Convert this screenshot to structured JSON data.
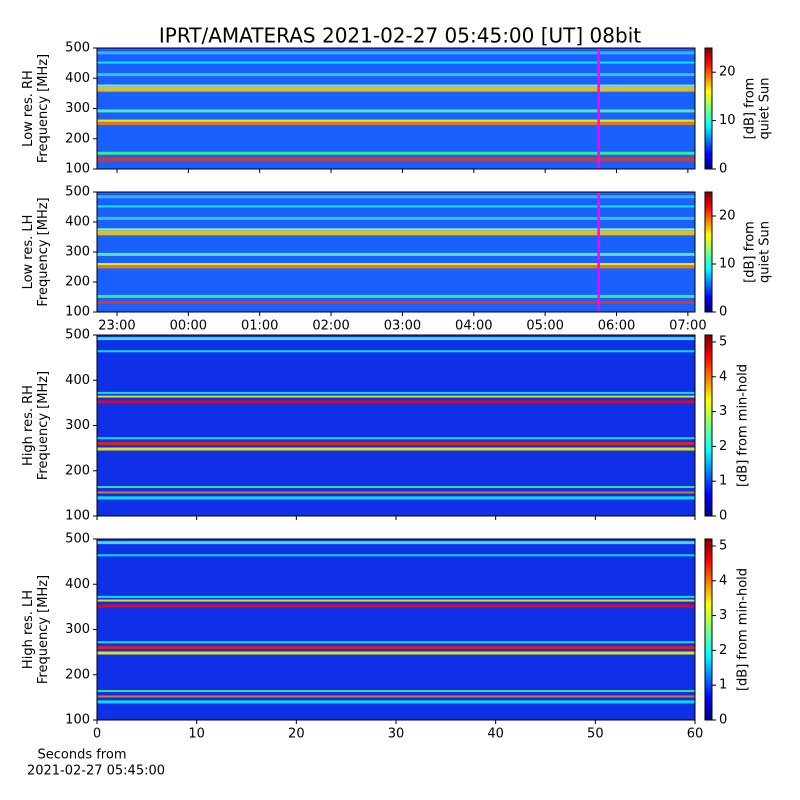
{
  "title": "IPRT/AMATERAS 2021-02-27 05:45:00 [UT]   08bit",
  "chart_data": [
    {
      "type": "heatmap",
      "ylabel": [
        "Low res. RH",
        "Frequency [MHz]"
      ],
      "xlim": [
        22.72,
        31.1
      ],
      "xticks": [
        {
          "value": 23,
          "label": "23:00"
        },
        {
          "value": 24,
          "label": "00:00"
        },
        {
          "value": 25,
          "label": "01:00"
        },
        {
          "value": 26,
          "label": "02:00"
        },
        {
          "value": 27,
          "label": "03:00"
        },
        {
          "value": 28,
          "label": "04:00"
        },
        {
          "value": 29,
          "label": "05:00"
        },
        {
          "value": 30,
          "label": "06:00"
        },
        {
          "value": 31,
          "label": "07:00"
        }
      ],
      "show_xticklabels": false,
      "ylim": [
        100,
        500
      ],
      "yticks": [
        100,
        200,
        300,
        400,
        500
      ],
      "marker": {
        "value": 29.75,
        "color": "#ff00ff"
      },
      "colorbar": {
        "label": [
          "[dB] from",
          "quiet Sun"
        ],
        "lim": [
          0,
          25
        ],
        "ticks": [
          0,
          10,
          20
        ]
      }
    },
    {
      "type": "heatmap",
      "ylabel": [
        "Low res. LH",
        "Frequency [MHz]"
      ],
      "xlim": [
        22.72,
        31.1
      ],
      "xticks": [
        {
          "value": 23,
          "label": "23:00"
        },
        {
          "value": 24,
          "label": "00:00"
        },
        {
          "value": 25,
          "label": "01:00"
        },
        {
          "value": 26,
          "label": "02:00"
        },
        {
          "value": 27,
          "label": "03:00"
        },
        {
          "value": 28,
          "label": "04:00"
        },
        {
          "value": 29,
          "label": "05:00"
        },
        {
          "value": 30,
          "label": "06:00"
        },
        {
          "value": 31,
          "label": "07:00"
        }
      ],
      "show_xticklabels": true,
      "ylim": [
        100,
        500
      ],
      "yticks": [
        100,
        200,
        300,
        400,
        500
      ],
      "marker": {
        "value": 29.75,
        "color": "#ff00ff"
      },
      "colorbar": {
        "label": [
          "[dB] from",
          "quiet Sun"
        ],
        "lim": [
          0,
          25
        ],
        "ticks": [
          0,
          10,
          20
        ]
      }
    },
    {
      "type": "heatmap",
      "ylabel": [
        "High res. RH",
        "Frequency [MHz]"
      ],
      "xlim": [
        0,
        60
      ],
      "xticks": [
        0,
        10,
        20,
        30,
        40,
        50,
        60
      ],
      "show_xticklabels": false,
      "ylim": [
        100,
        500
      ],
      "yticks": [
        100,
        200,
        300,
        400,
        500
      ],
      "colorbar": {
        "label": [
          "[dB] from min-hold"
        ],
        "lim": [
          0,
          5.2
        ],
        "ticks": [
          0,
          1,
          2,
          3,
          4,
          5
        ]
      }
    },
    {
      "type": "heatmap",
      "ylabel": [
        "High res. LH",
        "Frequency [MHz]"
      ],
      "xlim": [
        0,
        60
      ],
      "xticks": [
        0,
        10,
        20,
        30,
        40,
        50,
        60
      ],
      "show_xticklabels": true,
      "xlabel": [
        "Seconds from",
        "2021-02-27 05:45:00"
      ],
      "ylim": [
        100,
        500
      ],
      "yticks": [
        100,
        200,
        300,
        400,
        500
      ],
      "colorbar": {
        "label": [
          "[dB] from min-hold"
        ],
        "lim": [
          0,
          5.2
        ],
        "ticks": [
          0,
          1,
          2,
          3,
          4,
          5
        ]
      }
    }
  ]
}
